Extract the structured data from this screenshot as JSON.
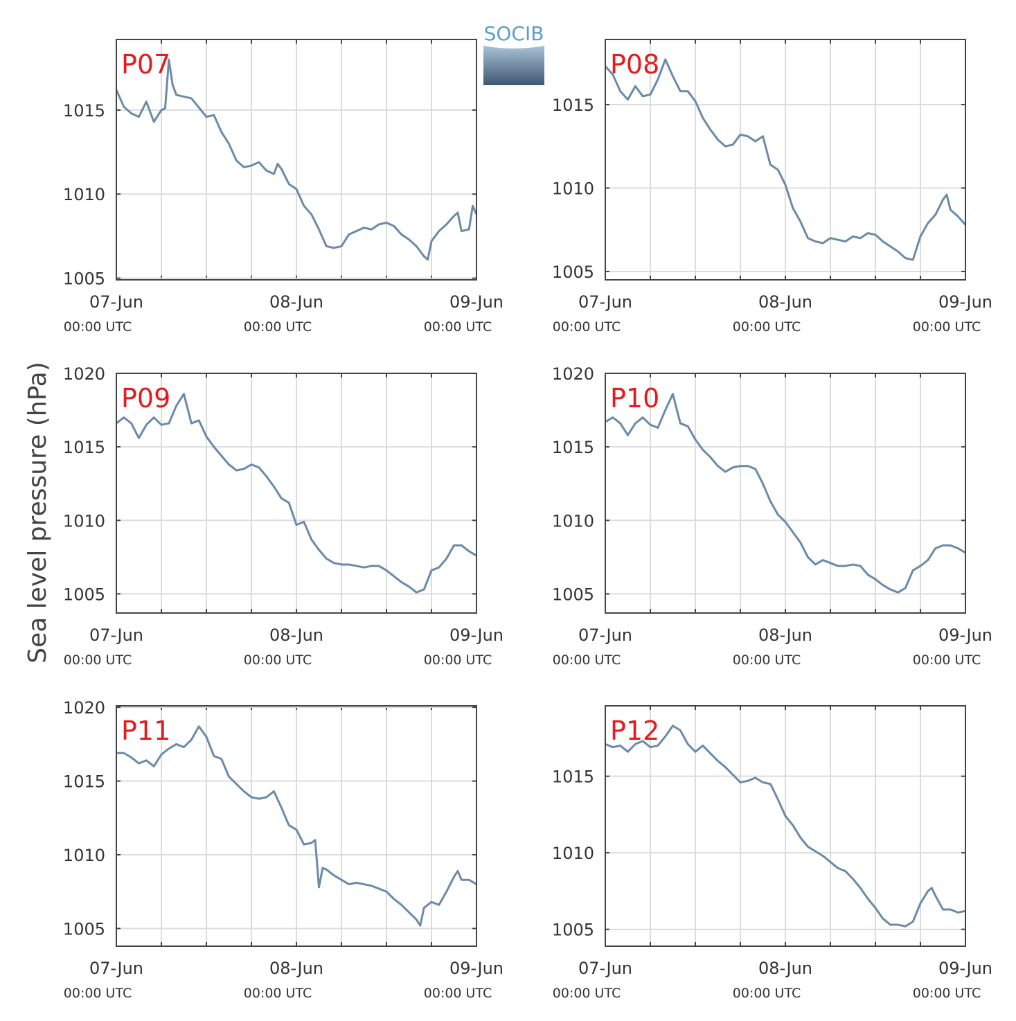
{
  "ylabel": "Sea level pressure (hPa)",
  "logo": "SOCIB",
  "chart_data": [
    {
      "type": "line",
      "title": "P07",
      "color": "#6a8aaa",
      "grid": true,
      "xlim": [
        0,
        48
      ],
      "ylim": [
        1004.9,
        1019.2
      ],
      "xticks": [
        {
          "value": 0,
          "label": "07-Jun\n00:00 UTC"
        },
        {
          "value": 24,
          "label": "08-Jun\n00:00 UTC"
        },
        {
          "value": 48,
          "label": "09-Jun\n00:00 UTC"
        }
      ],
      "xgrid": [
        6,
        12,
        18,
        30,
        36,
        42
      ],
      "yticks": [
        1005,
        1010,
        1015
      ],
      "x": [
        0,
        1,
        2,
        3,
        4,
        5,
        6,
        6.5,
        7,
        7.5,
        8,
        10,
        12,
        13,
        14,
        15,
        16,
        17,
        18,
        19,
        20,
        21,
        21.5,
        22,
        23,
        24,
        25,
        26,
        27,
        28,
        29,
        30,
        31,
        32,
        33,
        34,
        35,
        36,
        37,
        38,
        39,
        40,
        41,
        41.5,
        42,
        43,
        44,
        45,
        45.5,
        46,
        47,
        47.5,
        48
      ],
      "values": [
        1016.2,
        1015.2,
        1014.8,
        1014.6,
        1015.5,
        1014.3,
        1015.0,
        1015.1,
        1018.0,
        1016.5,
        1015.9,
        1015.7,
        1014.6,
        1014.7,
        1013.7,
        1013.0,
        1012.0,
        1011.6,
        1011.7,
        1011.9,
        1011.4,
        1011.2,
        1011.8,
        1011.5,
        1010.6,
        1010.3,
        1009.3,
        1008.8,
        1007.9,
        1006.9,
        1006.8,
        1006.9,
        1007.6,
        1007.8,
        1008.0,
        1007.9,
        1008.2,
        1008.3,
        1008.1,
        1007.6,
        1007.3,
        1006.9,
        1006.3,
        1006.1,
        1007.2,
        1007.8,
        1008.2,
        1008.7,
        1008.9,
        1007.8,
        1007.9,
        1009.3,
        1008.8
      ]
    },
    {
      "type": "line",
      "title": "P08",
      "color": "#6a8aaa",
      "grid": true,
      "xlim": [
        0,
        48
      ],
      "ylim": [
        1004.5,
        1018.9
      ],
      "xticks": [
        {
          "value": 0,
          "label": "07-Jun\n00:00 UTC"
        },
        {
          "value": 24,
          "label": "08-Jun\n00:00 UTC"
        },
        {
          "value": 48,
          "label": "09-Jun\n00:00 UTC"
        }
      ],
      "xgrid": [
        6,
        12,
        18,
        30,
        36,
        42
      ],
      "yticks": [
        1005,
        1010,
        1015
      ],
      "x": [
        0,
        1,
        2,
        3,
        4,
        5,
        6,
        7,
        8,
        9,
        10,
        11,
        12,
        13,
        14,
        15,
        16,
        17,
        18,
        19,
        20,
        21,
        22,
        23,
        24,
        25,
        26,
        27,
        28,
        29,
        30,
        31,
        32,
        33,
        34,
        35,
        36,
        37,
        38,
        39,
        40,
        41,
        42,
        43,
        44,
        45,
        45.5,
        46,
        47,
        48
      ],
      "values": [
        1017.3,
        1016.8,
        1015.8,
        1015.3,
        1016.1,
        1015.5,
        1015.6,
        1016.5,
        1017.7,
        1016.7,
        1015.8,
        1015.8,
        1015.2,
        1014.2,
        1013.5,
        1012.9,
        1012.5,
        1012.6,
        1013.2,
        1013.1,
        1012.8,
        1013.1,
        1011.4,
        1011.1,
        1010.2,
        1008.8,
        1008.0,
        1007.0,
        1006.8,
        1006.7,
        1007.0,
        1006.9,
        1006.8,
        1007.1,
        1007.0,
        1007.3,
        1007.2,
        1006.8,
        1006.5,
        1006.2,
        1005.8,
        1005.7,
        1007.1,
        1007.9,
        1008.4,
        1009.3,
        1009.6,
        1008.7,
        1008.3,
        1007.8
      ]
    },
    {
      "type": "line",
      "title": "P09",
      "color": "#6a8aaa",
      "grid": true,
      "xlim": [
        0,
        48
      ],
      "ylim": [
        1003.7,
        1020
      ],
      "xticks": [
        {
          "value": 0,
          "label": "07-Jun\n00:00 UTC"
        },
        {
          "value": 24,
          "label": "08-Jun\n00:00 UTC"
        },
        {
          "value": 48,
          "label": "09-Jun\n00:00 UTC"
        }
      ],
      "xgrid": [
        6,
        12,
        18,
        30,
        36,
        42
      ],
      "yticks": [
        1005,
        1010,
        1015,
        1020
      ],
      "x": [
        0,
        1,
        2,
        3,
        4,
        5,
        6,
        7,
        8,
        9,
        10,
        11,
        12,
        13,
        14,
        15,
        16,
        17,
        18,
        19,
        20,
        21,
        22,
        23,
        24,
        25,
        26,
        27,
        28,
        29,
        30,
        31,
        32,
        33,
        34,
        35,
        36,
        37,
        38,
        39,
        40,
        41,
        42,
        43,
        44,
        45,
        46,
        47,
        48
      ],
      "values": [
        1016.6,
        1017.0,
        1016.6,
        1015.6,
        1016.5,
        1017.0,
        1016.5,
        1016.6,
        1017.8,
        1018.6,
        1016.6,
        1016.8,
        1015.7,
        1015.0,
        1014.4,
        1013.8,
        1013.4,
        1013.5,
        1013.8,
        1013.6,
        1013.0,
        1012.3,
        1011.5,
        1011.2,
        1009.7,
        1009.9,
        1008.7,
        1008.0,
        1007.4,
        1007.1,
        1007.0,
        1007.0,
        1006.9,
        1006.8,
        1006.9,
        1006.9,
        1006.6,
        1006.2,
        1005.8,
        1005.5,
        1005.1,
        1005.3,
        1006.6,
        1006.8,
        1007.4,
        1008.3,
        1008.3,
        1007.9,
        1007.6
      ]
    },
    {
      "type": "line",
      "title": "P10",
      "color": "#6a8aaa",
      "grid": true,
      "xlim": [
        0,
        48
      ],
      "ylim": [
        1003.7,
        1020
      ],
      "xticks": [
        {
          "value": 0,
          "label": "07-Jun\n00:00 UTC"
        },
        {
          "value": 24,
          "label": "08-Jun\n00:00 UTC"
        },
        {
          "value": 48,
          "label": "09-Jun\n00:00 UTC"
        }
      ],
      "xgrid": [
        6,
        12,
        18,
        30,
        36,
        42
      ],
      "yticks": [
        1005,
        1010,
        1015,
        1020
      ],
      "x": [
        0,
        1,
        2,
        3,
        4,
        5,
        6,
        7,
        8,
        9,
        10,
        11,
        12,
        13,
        14,
        15,
        16,
        17,
        18,
        19,
        20,
        21,
        22,
        23,
        24,
        25,
        26,
        27,
        28,
        29,
        30,
        31,
        32,
        33,
        34,
        35,
        36,
        37,
        38,
        39,
        40,
        41,
        42,
        43,
        44,
        45,
        46,
        47,
        48
      ],
      "values": [
        1016.7,
        1017.0,
        1016.6,
        1015.8,
        1016.6,
        1017.0,
        1016.5,
        1016.3,
        1017.5,
        1018.6,
        1016.6,
        1016.4,
        1015.5,
        1014.8,
        1014.3,
        1013.7,
        1013.3,
        1013.6,
        1013.7,
        1013.7,
        1013.5,
        1012.5,
        1011.3,
        1010.4,
        1009.9,
        1009.2,
        1008.5,
        1007.5,
        1007.0,
        1007.3,
        1007.1,
        1006.9,
        1006.9,
        1007.0,
        1006.9,
        1006.3,
        1006.0,
        1005.6,
        1005.3,
        1005.1,
        1005.4,
        1006.6,
        1006.9,
        1007.3,
        1008.1,
        1008.3,
        1008.3,
        1008.1,
        1007.8
      ]
    },
    {
      "type": "line",
      "title": "P11",
      "color": "#6a8aaa",
      "grid": true,
      "xlim": [
        0,
        48
      ],
      "ylim": [
        1003.8,
        1020.1
      ],
      "xticks": [
        {
          "value": 0,
          "label": "07-Jun\n00:00 UTC"
        },
        {
          "value": 24,
          "label": "08-Jun\n00:00 UTC"
        },
        {
          "value": 48,
          "label": "09-Jun\n00:00 UTC"
        }
      ],
      "xgrid": [
        6,
        12,
        18,
        30,
        36,
        42
      ],
      "yticks": [
        1005,
        1010,
        1015,
        1020
      ],
      "x": [
        0,
        1,
        2,
        3,
        4,
        5,
        6,
        7,
        8,
        9,
        10,
        11,
        12,
        13,
        14,
        15,
        16,
        17,
        18,
        19,
        20,
        21,
        22,
        23,
        24,
        25,
        26,
        26.5,
        27,
        27.5,
        28,
        29,
        30,
        31,
        32,
        33,
        34,
        35,
        36,
        37,
        38,
        39,
        40,
        40.5,
        41,
        42,
        43,
        44,
        45,
        45.5,
        46,
        47,
        48
      ],
      "values": [
        1016.9,
        1016.9,
        1016.6,
        1016.2,
        1016.4,
        1016.0,
        1016.8,
        1017.2,
        1017.5,
        1017.3,
        1017.8,
        1018.7,
        1018.0,
        1016.7,
        1016.5,
        1015.3,
        1014.8,
        1014.3,
        1013.9,
        1013.8,
        1013.9,
        1014.3,
        1013.2,
        1012.0,
        1011.7,
        1010.7,
        1010.8,
        1011.0,
        1007.8,
        1009.1,
        1009.0,
        1008.6,
        1008.3,
        1008.0,
        1008.1,
        1008.0,
        1007.9,
        1007.7,
        1007.5,
        1007.0,
        1006.6,
        1006.1,
        1005.6,
        1005.2,
        1006.4,
        1006.8,
        1006.6,
        1007.5,
        1008.5,
        1008.9,
        1008.3,
        1008.3,
        1008.0
      ]
    },
    {
      "type": "line",
      "title": "P12",
      "color": "#6a8aaa",
      "grid": true,
      "xlim": [
        0,
        48
      ],
      "ylim": [
        1003.9,
        1019.6
      ],
      "xticks": [
        {
          "value": 0,
          "label": "07-Jun\n00:00 UTC"
        },
        {
          "value": 24,
          "label": "08-Jun\n00:00 UTC"
        },
        {
          "value": 48,
          "label": "09-Jun\n00:00 UTC"
        }
      ],
      "xgrid": [
        6,
        12,
        18,
        30,
        36,
        42
      ],
      "yticks": [
        1005,
        1010,
        1015
      ],
      "x": [
        0,
        1,
        2,
        3,
        4,
        5,
        6,
        7,
        8,
        9,
        10,
        11,
        12,
        13,
        14,
        15,
        16,
        17,
        18,
        19,
        20,
        21,
        22,
        23,
        24,
        25,
        26,
        27,
        28,
        29,
        30,
        31,
        32,
        33,
        34,
        35,
        36,
        37,
        38,
        39,
        40,
        41,
        42,
        43,
        43.5,
        44,
        45,
        46,
        47,
        48
      ],
      "values": [
        1017.1,
        1016.9,
        1017.0,
        1016.6,
        1017.1,
        1017.3,
        1016.9,
        1017.0,
        1017.6,
        1018.3,
        1018.0,
        1017.1,
        1016.6,
        1017.0,
        1016.5,
        1016.0,
        1015.6,
        1015.1,
        1014.6,
        1014.7,
        1014.9,
        1014.6,
        1014.5,
        1013.5,
        1012.4,
        1011.8,
        1011.0,
        1010.4,
        1010.1,
        1009.8,
        1009.4,
        1009.0,
        1008.8,
        1008.3,
        1007.7,
        1007.0,
        1006.4,
        1005.7,
        1005.3,
        1005.3,
        1005.2,
        1005.5,
        1006.7,
        1007.5,
        1007.7,
        1007.2,
        1006.3,
        1006.3,
        1006.1,
        1006.2
      ]
    }
  ]
}
